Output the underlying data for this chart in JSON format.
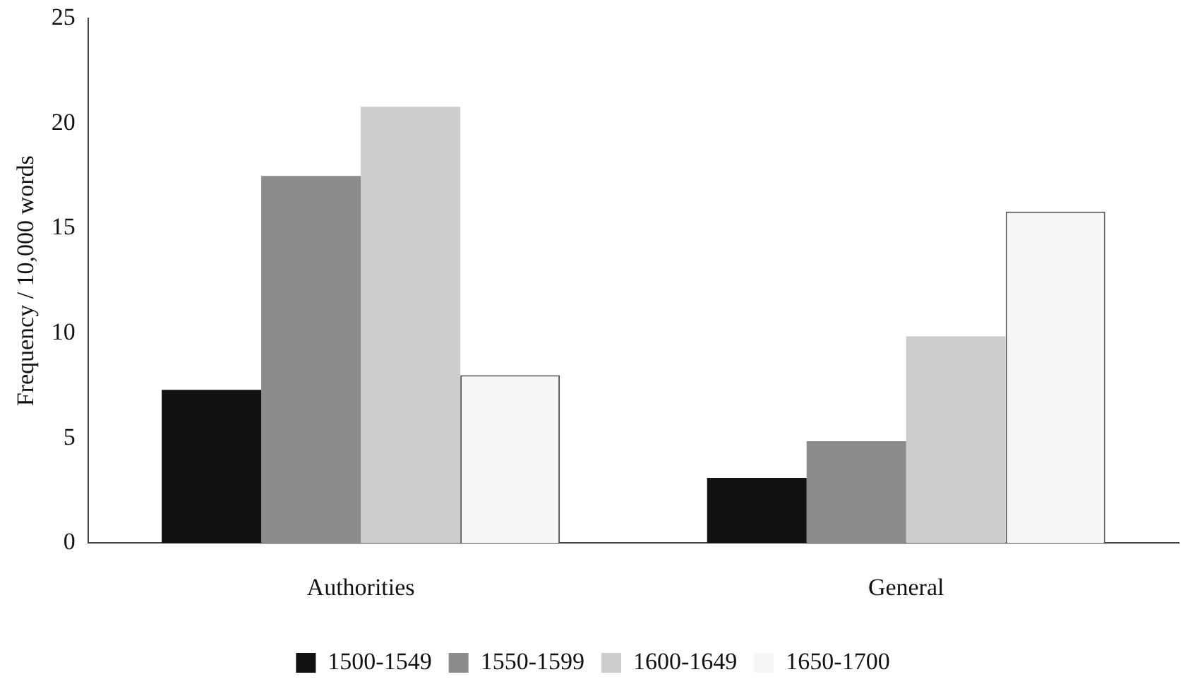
{
  "chart_data": {
    "type": "bar",
    "ylabel": "Frequency / 10,000 words",
    "categories": [
      "Authorities",
      "General"
    ],
    "series": [
      {
        "name": "1500-1549",
        "color": "#111111",
        "values": [
          7.3,
          3.1
        ]
      },
      {
        "name": "1550-1599",
        "color": "#8c8c8c",
        "values": [
          17.5,
          4.85
        ]
      },
      {
        "name": "1600-1649",
        "color": "#cccccc",
        "values": [
          20.8,
          9.85
        ]
      },
      {
        "name": "1650-1700",
        "color": "#f7f7f7",
        "values": [
          8.0,
          15.8
        ]
      }
    ],
    "ylim": [
      0,
      25
    ],
    "yticks": [
      0,
      5,
      10,
      15,
      20,
      25
    ],
    "grid": false,
    "legend": "bottom"
  }
}
